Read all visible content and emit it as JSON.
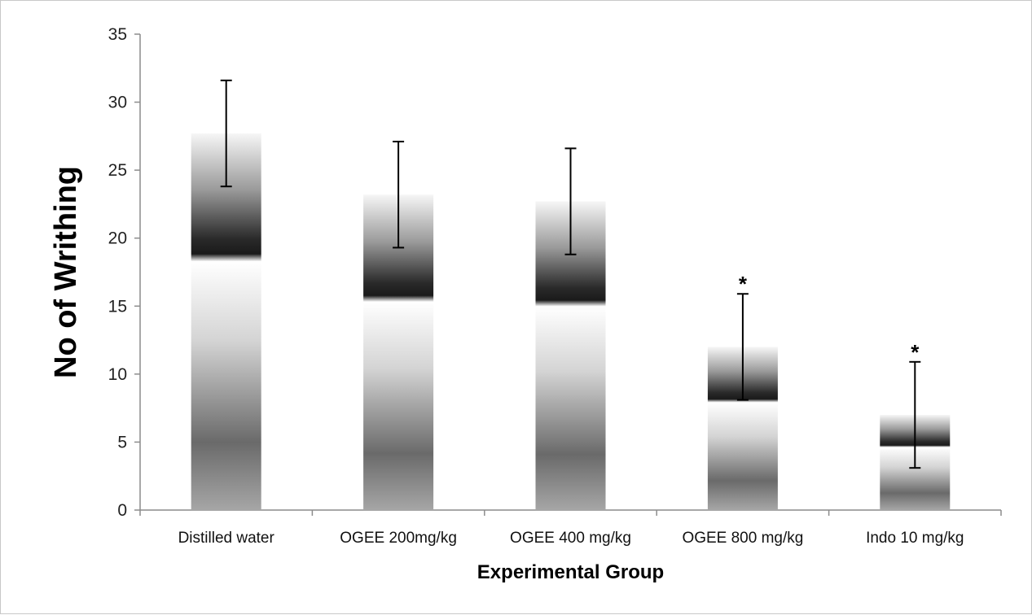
{
  "chart_data": {
    "type": "bar",
    "title": "",
    "xlabel": "Experimental Group",
    "ylabel": "No of Writhing",
    "categories": [
      "Distilled water",
      "OGEE 200mg/kg",
      "OGEE 400 mg/kg",
      "OGEE 800 mg/kg",
      "Indo 10 mg/kg"
    ],
    "values": [
      27.7,
      23.2,
      22.7,
      12.0,
      7.0
    ],
    "error_plus": [
      3.9,
      3.9,
      3.9,
      3.9,
      3.9
    ],
    "error_minus": [
      3.9,
      3.9,
      3.9,
      3.9,
      3.9
    ],
    "significance": [
      "",
      "",
      "",
      "*",
      "*"
    ],
    "ylim": [
      0,
      35
    ],
    "yticks": [
      0,
      5,
      10,
      15,
      20,
      25,
      30,
      35
    ],
    "grid": false,
    "legend": "none",
    "bar_fill": "grayscale-gradient"
  }
}
